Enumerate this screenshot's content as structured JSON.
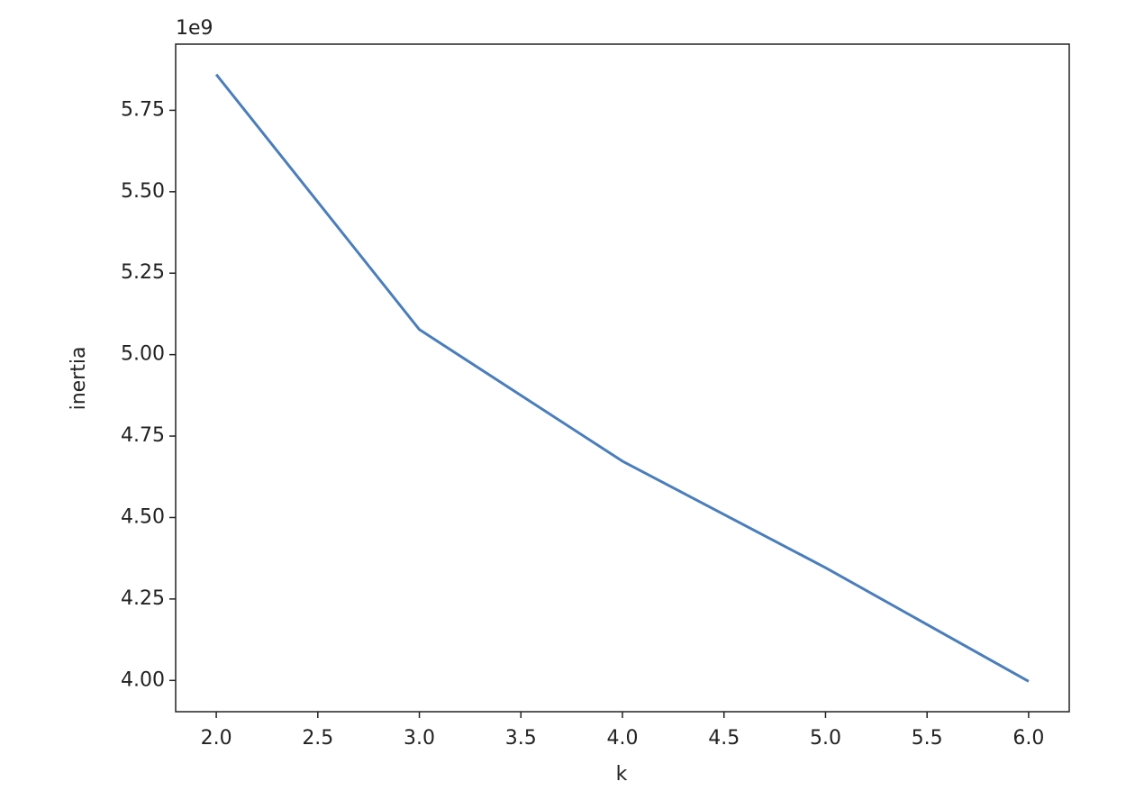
{
  "chart_data": {
    "type": "line",
    "x_label": "k",
    "y_label": "inertia",
    "y_offset_text": "1e9",
    "x": [
      2,
      3,
      4,
      5,
      6
    ],
    "values": [
      5.86,
      5.077,
      4.673,
      4.346,
      3.997
    ],
    "color": "#4a7ebb",
    "xlim": [
      1.8,
      6.2
    ],
    "xticks": [
      {
        "value": 2,
        "label": "2.0"
      },
      {
        "value": 2.5,
        "label": "2.5"
      },
      {
        "value": 3,
        "label": "3.0"
      },
      {
        "value": 3.5,
        "label": "3.5"
      },
      {
        "value": 4,
        "label": "4.0"
      },
      {
        "value": 4.5,
        "label": "4.5"
      },
      {
        "value": 5,
        "label": "5.0"
      },
      {
        "value": 5.5,
        "label": "5.5"
      },
      {
        "value": 6,
        "label": "6.0"
      }
    ],
    "ylim": [
      3.904,
      5.953
    ],
    "yticks": [
      {
        "value": 4,
        "label": "4.00"
      },
      {
        "value": 4.25,
        "label": "4.25"
      },
      {
        "value": 4.5,
        "label": "4.50"
      },
      {
        "value": 4.75,
        "label": "4.75"
      },
      {
        "value": 5,
        "label": "5.00"
      },
      {
        "value": 5.25,
        "label": "5.25"
      },
      {
        "value": 5.5,
        "label": "5.50"
      },
      {
        "value": 5.75,
        "label": "5.75"
      }
    ],
    "grid": false
  }
}
